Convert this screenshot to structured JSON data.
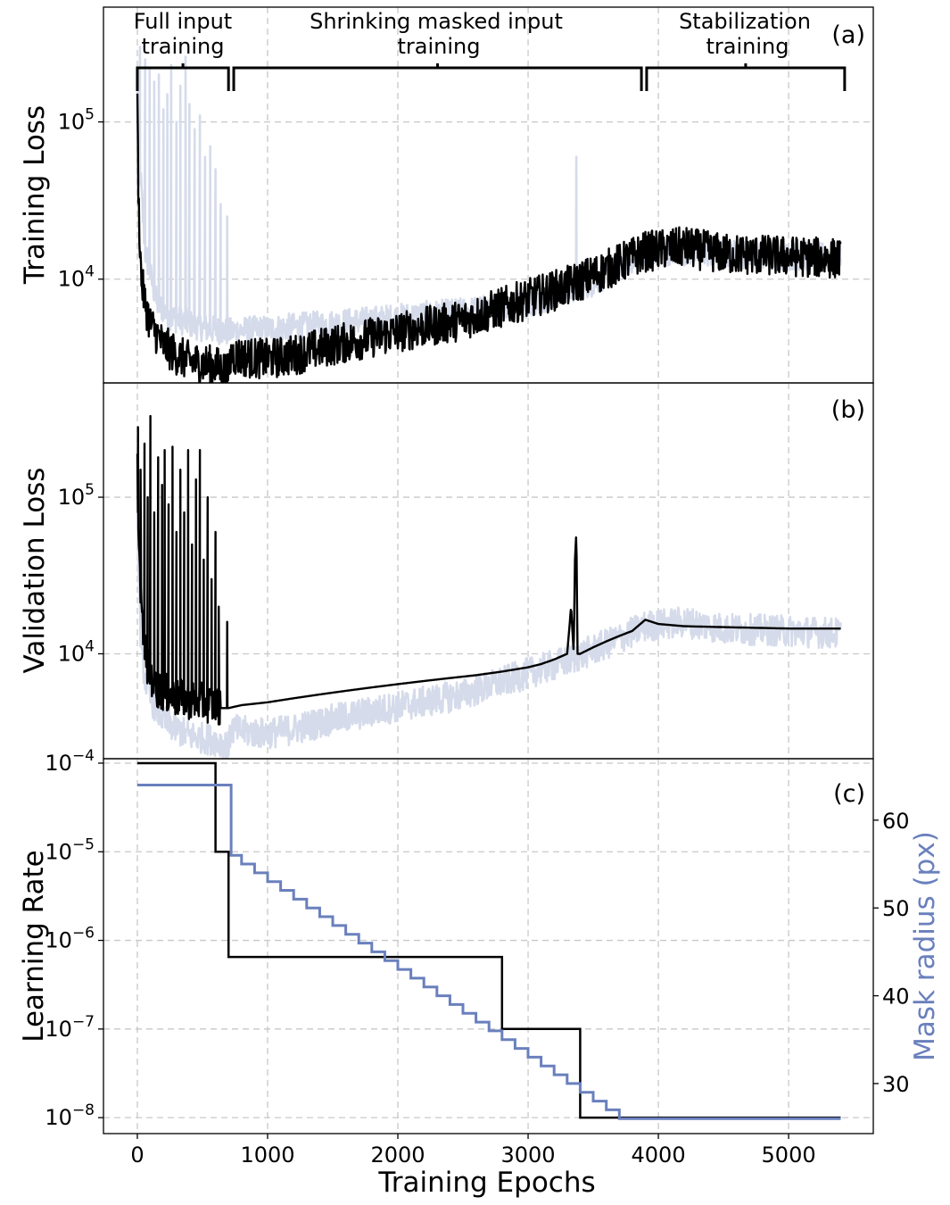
{
  "colors": {
    "dark": "#000000",
    "light": "#d5dbea",
    "mask": "#6a80bd",
    "grid": "#c8c8c8"
  },
  "phases": [
    {
      "label_line1": "Full input",
      "label_line2": "training",
      "start": 0,
      "end": 700
    },
    {
      "label_line1": "Shrinking masked input",
      "label_line2": "training",
      "start": 740,
      "end": 3870
    },
    {
      "label_line1": "Stabilization",
      "label_line2": "training",
      "start": 3910,
      "end": 5430
    }
  ],
  "chart_data": [
    {
      "panel": "(a)",
      "type": "line",
      "ylabel": "Training Loss",
      "yscale": "log",
      "xlim": [
        -260,
        5650
      ],
      "ylim_log10": [
        3.34,
        5.73
      ],
      "yticks": [
        {
          "value": 10000,
          "base": "10",
          "exp": "4"
        },
        {
          "value": 100000,
          "base": "10",
          "exp": "5"
        }
      ],
      "xgrid": [
        0,
        1000,
        2000,
        3000,
        4000,
        5000
      ],
      "series": [
        {
          "name": "validation loss (faded)",
          "color": "light",
          "noise": 0.09,
          "x": [
            0,
            15,
            60,
            150,
            250,
            400,
            550,
            650,
            700,
            750,
            1000,
            1500,
            2000,
            2500,
            3000,
            3300,
            3500,
            3700,
            3900,
            4200,
            4500,
            5000,
            5400
          ],
          "y": [
            200000,
            60000,
            15000,
            7000,
            5800,
            5200,
            4800,
            4700,
            4600,
            4700,
            4800,
            5200,
            5700,
            6200,
            7000,
            8500,
            9500,
            12000,
            15000,
            15000,
            14500,
            14000,
            14000
          ],
          "spikes": [
            {
              "x": 20,
              "y": 300000
            },
            {
              "x": 60,
              "y": 250000
            },
            {
              "x": 95,
              "y": 220000
            },
            {
              "x": 130,
              "y": 180000
            },
            {
              "x": 165,
              "y": 200000
            },
            {
              "x": 200,
              "y": 120000
            },
            {
              "x": 230,
              "y": 150000
            },
            {
              "x": 260,
              "y": 230000
            },
            {
              "x": 300,
              "y": 100000
            },
            {
              "x": 330,
              "y": 170000
            },
            {
              "x": 370,
              "y": 260000
            },
            {
              "x": 400,
              "y": 130000
            },
            {
              "x": 440,
              "y": 90000
            },
            {
              "x": 480,
              "y": 110000
            },
            {
              "x": 520,
              "y": 60000
            },
            {
              "x": 560,
              "y": 70000
            },
            {
              "x": 600,
              "y": 50000
            },
            {
              "x": 640,
              "y": 30000
            },
            {
              "x": 690,
              "y": 25000
            },
            {
              "x": 3330,
              "y": 12000
            },
            {
              "x": 3370,
              "y": 60000
            }
          ]
        },
        {
          "name": "training loss",
          "color": "dark",
          "noise": 0.13,
          "x": [
            0,
            10,
            30,
            60,
            100,
            200,
            300,
            400,
            500,
            600,
            690,
            700,
            720,
            800,
            1000,
            1200,
            1500,
            2000,
            2500,
            3000,
            3300,
            3600,
            3900,
            4200,
            4500,
            5000,
            5400
          ],
          "y": [
            120000,
            30000,
            10000,
            7000,
            5200,
            3800,
            3300,
            3000,
            2900,
            2800,
            2600,
            2500,
            3300,
            3200,
            3100,
            3300,
            3800,
            4600,
            5500,
            7500,
            9000,
            11500,
            15000,
            16000,
            14500,
            14000,
            13500
          ]
        }
      ]
    },
    {
      "panel": "(b)",
      "type": "line",
      "ylabel": "Validation Loss",
      "yscale": "log",
      "xlim": [
        -260,
        5650
      ],
      "ylim_log10": [
        3.33,
        5.73
      ],
      "yticks": [
        {
          "value": 10000,
          "base": "10",
          "exp": "4"
        },
        {
          "value": 100000,
          "base": "10",
          "exp": "5"
        }
      ],
      "xgrid": [
        0,
        1000,
        2000,
        3000,
        4000,
        5000
      ],
      "series": [
        {
          "name": "training loss (faded)",
          "color": "light",
          "noise": 0.1,
          "x": [
            0,
            10,
            30,
            60,
            100,
            200,
            300,
            400,
            500,
            600,
            690,
            700,
            720,
            800,
            1000,
            1200,
            1500,
            2000,
            2500,
            3000,
            3300,
            3600,
            3900,
            4200,
            4500,
            5000,
            5400
          ],
          "y": [
            120000,
            30000,
            10000,
            7000,
            5200,
            3800,
            3300,
            3000,
            2900,
            2800,
            2600,
            2500,
            3300,
            3200,
            3100,
            3300,
            3800,
            4600,
            5500,
            7500,
            9000,
            11500,
            15000,
            16000,
            14500,
            14000,
            13500
          ]
        },
        {
          "name": "validation loss",
          "color": "dark",
          "noise": 0,
          "step": true,
          "oscillate_until": 640,
          "x": [
            0,
            15,
            40,
            80,
            150,
            300,
            450,
            600,
            640,
            700,
            750,
            800,
            1000,
            1200,
            1400,
            1600,
            1800,
            2000,
            2200,
            2400,
            2600,
            2800,
            3000,
            3100,
            3200,
            3300,
            3330,
            3350,
            3360,
            3370,
            3380,
            3400,
            3500,
            3600,
            3700,
            3800,
            3900,
            4000,
            4200,
            4500,
            5000,
            5400
          ],
          "y": [
            150000,
            40000,
            15000,
            8000,
            6000,
            5200,
            5000,
            4700,
            4500,
            4500,
            4600,
            4700,
            4900,
            5200,
            5500,
            5800,
            6100,
            6400,
            6700,
            7000,
            7300,
            7700,
            8200,
            8600,
            9200,
            10000,
            20000,
            10000,
            40000,
            60000,
            10000,
            10000,
            11000,
            12000,
            13000,
            14000,
            16500,
            15500,
            15000,
            14800,
            14500,
            14500
          ],
          "spikes": [
            {
              "x": 5,
              "y": 280000
            },
            {
              "x": 25,
              "y": 150000
            },
            {
              "x": 55,
              "y": 220000
            },
            {
              "x": 80,
              "y": 100000
            },
            {
              "x": 100,
              "y": 330000
            },
            {
              "x": 130,
              "y": 80000
            },
            {
              "x": 160,
              "y": 180000
            },
            {
              "x": 190,
              "y": 120000
            },
            {
              "x": 210,
              "y": 200000
            },
            {
              "x": 240,
              "y": 90000
            },
            {
              "x": 270,
              "y": 210000
            },
            {
              "x": 300,
              "y": 60000
            },
            {
              "x": 330,
              "y": 150000
            },
            {
              "x": 360,
              "y": 80000
            },
            {
              "x": 390,
              "y": 200000
            },
            {
              "x": 420,
              "y": 50000
            },
            {
              "x": 450,
              "y": 130000
            },
            {
              "x": 480,
              "y": 200000
            },
            {
              "x": 510,
              "y": 40000
            },
            {
              "x": 540,
              "y": 100000
            },
            {
              "x": 570,
              "y": 30000
            },
            {
              "x": 600,
              "y": 60000
            },
            {
              "x": 625,
              "y": 20000
            },
            {
              "x": 690,
              "y": 16000
            }
          ]
        }
      ]
    },
    {
      "panel": "(c)",
      "type": "line",
      "ylabel": "Learning Rate",
      "y2label": "Mask radius (px)",
      "xlabel": "Training Epochs",
      "yscale": "log",
      "xlim": [
        -260,
        5650
      ],
      "ylim_log10": [
        -8.18,
        -3.95
      ],
      "y2lim": [
        24.3,
        67.0
      ],
      "yticks": [
        {
          "value": 0.0001,
          "base": "10",
          "exp": "−4"
        },
        {
          "value": 1e-05,
          "base": "10",
          "exp": "−5"
        },
        {
          "value": 1e-06,
          "base": "10",
          "exp": "−6"
        },
        {
          "value": 1e-07,
          "base": "10",
          "exp": "−7"
        },
        {
          "value": 1e-08,
          "base": "10",
          "exp": "−8"
        }
      ],
      "y2ticks": [
        30,
        40,
        50,
        60
      ],
      "xticks": [
        0,
        1000,
        2000,
        3000,
        4000,
        5000
      ],
      "xticklabels": [
        "0",
        "1000",
        "2000",
        "3000",
        "4000",
        "5000"
      ],
      "series": [
        {
          "name": "learning rate",
          "color": "dark",
          "axis": "left",
          "x": [
            0,
            600,
            600,
            700,
            700,
            2800,
            2800,
            3400,
            3400,
            5400
          ],
          "y": [
            0.0001,
            0.0001,
            1e-05,
            1e-05,
            6.5e-07,
            6.5e-07,
            1e-07,
            1e-07,
            1e-08,
            1e-08
          ]
        },
        {
          "name": "mask radius",
          "color": "mask",
          "axis": "right",
          "x": [
            0,
            700,
            720,
            800,
            900,
            1000,
            1100,
            1200,
            1300,
            1400,
            1500,
            1600,
            1700,
            1800,
            1900,
            2000,
            2100,
            2200,
            2300,
            2400,
            2500,
            2600,
            2700,
            2800,
            2900,
            3000,
            3100,
            3200,
            3300,
            3400,
            3500,
            3600,
            3700,
            3800,
            3900,
            5400
          ],
          "y": [
            64,
            64,
            56,
            55,
            54,
            53,
            52,
            51,
            50,
            49,
            48,
            47,
            46,
            45,
            44,
            43,
            42,
            41,
            40,
            39,
            38,
            37,
            36,
            35,
            34,
            33,
            32,
            31,
            30,
            29,
            28,
            27,
            26,
            26,
            26,
            26
          ]
        }
      ]
    }
  ]
}
